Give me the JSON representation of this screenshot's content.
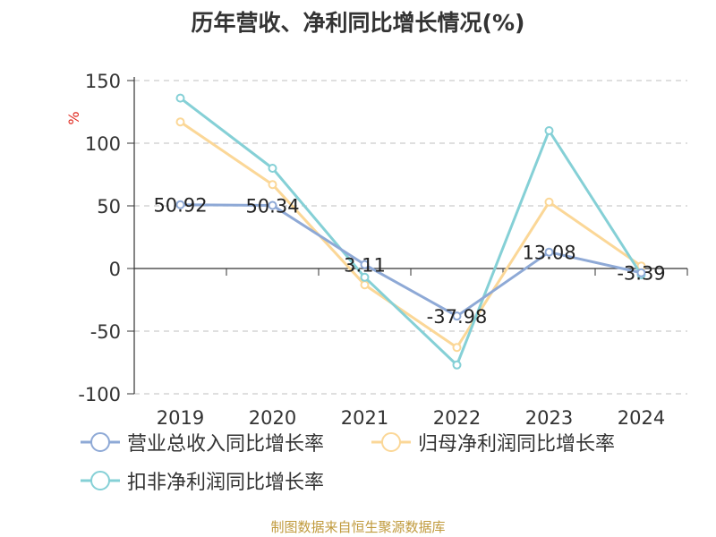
{
  "title": "历年营收、净利同比增长情况(%)",
  "source": "制图数据来自恒生聚源数据库",
  "colors": {
    "revenue": "#8ea9d6",
    "net_profit": "#fbd797",
    "deducted_profit": "#85d0d6",
    "axis": "#333333",
    "grid": "#cccccc",
    "unit": "#e0291f"
  },
  "chart_data": {
    "type": "line",
    "title": "历年营收、净利同比增长情况(%)",
    "ylabel": "%",
    "xlabel": "",
    "categories": [
      "2019",
      "2020",
      "2021",
      "2022",
      "2023",
      "2024"
    ],
    "ylim": [
      -100,
      150
    ],
    "yticks": [
      150,
      100,
      50,
      0,
      -50,
      -100
    ],
    "grid": true,
    "legend_position": "bottom-left",
    "series": [
      {
        "name": "营业总收入同比增长率",
        "values": [
          50.92,
          50.34,
          3.11,
          -37.98,
          13.08,
          -3.39
        ],
        "labels": [
          "50.92",
          "50.34",
          "3.11",
          "-37.98",
          "13.08",
          "-3.39"
        ]
      },
      {
        "name": "归母净利润同比增长率",
        "values": [
          117,
          67,
          -13,
          -63,
          53,
          2
        ]
      },
      {
        "name": "扣非净利润同比增长率",
        "values": [
          136,
          80,
          -7,
          -77,
          110,
          -5
        ]
      }
    ]
  }
}
